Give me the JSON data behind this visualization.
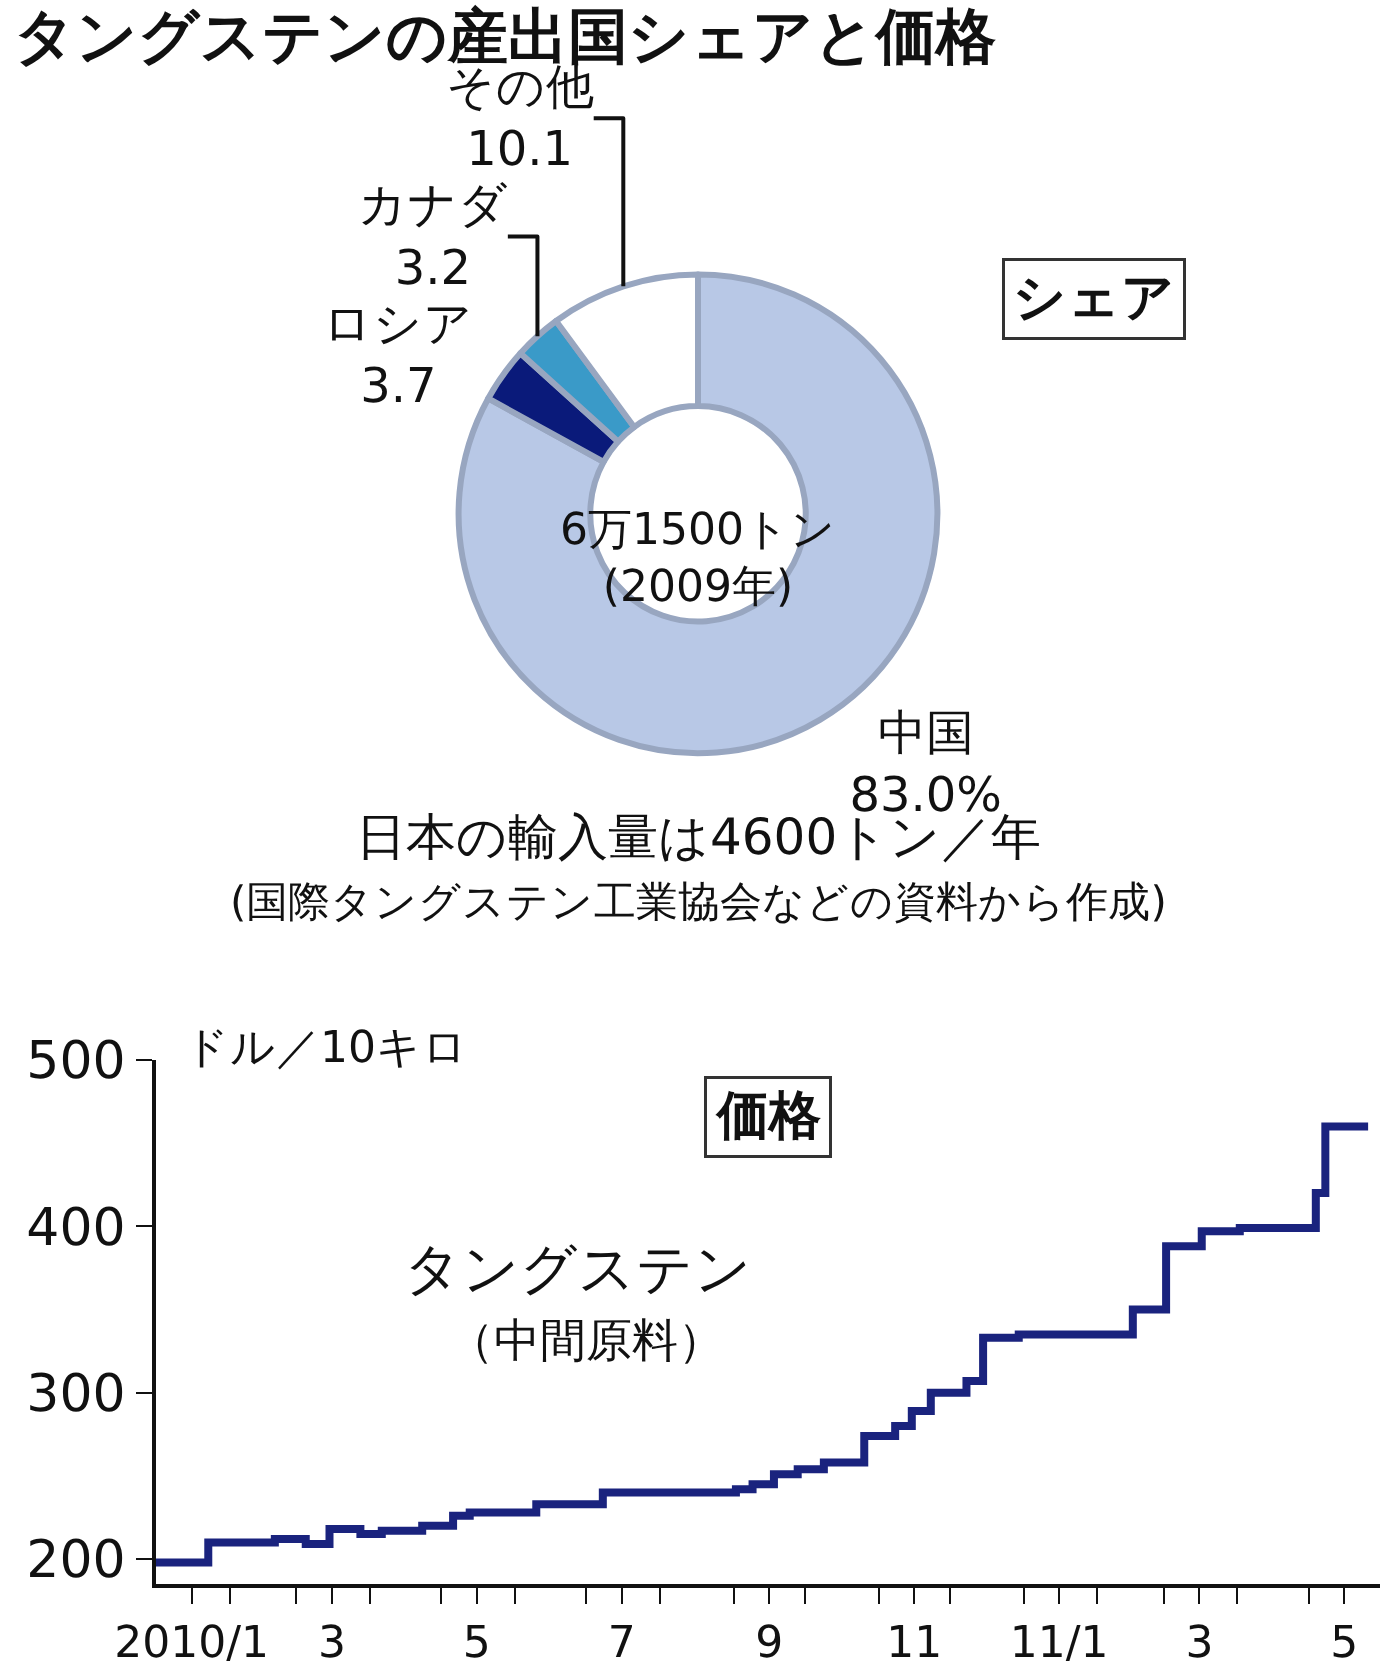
{
  "chart_data": [
    {
      "type": "donut",
      "title": "タングステンの産出国シェアと価格",
      "subtitle": "シェア",
      "categories": [
        "中国",
        "ロシア",
        "カナダ",
        "その他"
      ],
      "values": [
        83.0,
        3.7,
        3.2,
        10.1
      ],
      "value_labels": [
        "83.0%",
        "3.7",
        "3.2",
        "10.1"
      ],
      "colors": [
        "#b8c8e6",
        "#0a1a7a",
        "#3a9ac8",
        "#ffffff"
      ],
      "annotations": [
        "6万1500トン\n(2009年)",
        "日本の輸入量は4600トン／年",
        "(国際タングステン工業協会などの資料から作成)"
      ],
      "legend": false
    },
    {
      "type": "step",
      "subtitle": "価格",
      "ylabel": "ドル／10キロ",
      "xlim": [
        "2010-01-01",
        "2011-05-31"
      ],
      "xticks": [
        {
          "value": "2010-01-16",
          "label": "2010/1"
        },
        {
          "value": "2010-02-01",
          "label": null
        },
        {
          "value": "2010-03-01",
          "label": null
        },
        {
          "value": "2010-03-16",
          "label": "3"
        },
        {
          "value": "2010-04-01",
          "label": null
        },
        {
          "value": "2010-05-01",
          "label": null
        },
        {
          "value": "2010-05-16",
          "label": "5"
        },
        {
          "value": "2010-06-01",
          "label": null
        },
        {
          "value": "2010-07-01",
          "label": null
        },
        {
          "value": "2010-07-16",
          "label": "7"
        },
        {
          "value": "2010-08-01",
          "label": null
        },
        {
          "value": "2010-09-01",
          "label": null
        },
        {
          "value": "2010-09-16",
          "label": "9"
        },
        {
          "value": "2010-10-01",
          "label": null
        },
        {
          "value": "2010-11-01",
          "label": null
        },
        {
          "value": "2010-11-16",
          "label": "11"
        },
        {
          "value": "2010-12-01",
          "label": null
        },
        {
          "value": "2011-01-01",
          "label": null
        },
        {
          "value": "2011-01-16",
          "label": "11/1"
        },
        {
          "value": "2011-02-01",
          "label": null
        },
        {
          "value": "2011-03-01",
          "label": null
        },
        {
          "value": "2011-03-16",
          "label": "3"
        },
        {
          "value": "2011-04-01",
          "label": null
        },
        {
          "value": "2011-05-01",
          "label": null
        },
        {
          "value": "2011-05-16",
          "label": "5"
        }
      ],
      "ylim": [
        185,
        500
      ],
      "yticks": [
        200,
        300,
        400,
        500
      ],
      "series": [
        {
          "name": "タングステン",
          "color": "#1a237e",
          "x": [
            "2010-01-01",
            "2010-01-23",
            "2010-02-20",
            "2010-03-05",
            "2010-03-15",
            "2010-03-28",
            "2010-04-06",
            "2010-04-23",
            "2010-05-06",
            "2010-05-13",
            "2010-06-10",
            "2010-07-08",
            "2010-09-02",
            "2010-09-09",
            "2010-09-18",
            "2010-09-28",
            "2010-10-09",
            "2010-10-26",
            "2010-11-08",
            "2010-11-15",
            "2010-11-23",
            "2010-12-08",
            "2010-12-15",
            "2010-12-30",
            "2011-02-16",
            "2011-03-02",
            "2011-03-17",
            "2011-04-02",
            "2011-05-04",
            "2011-05-08",
            "2011-05-26"
          ],
          "values": [
            198,
            210,
            212,
            209,
            218,
            215,
            217,
            220,
            226,
            228,
            233,
            240,
            242,
            245,
            251,
            254,
            258,
            274,
            280,
            289,
            300,
            307,
            333,
            335,
            350,
            388,
            397,
            399,
            420,
            460,
            460
          ]
        }
      ],
      "annotations": [
        "（中間原料）"
      ],
      "grid": false,
      "legend": false
    }
  ]
}
